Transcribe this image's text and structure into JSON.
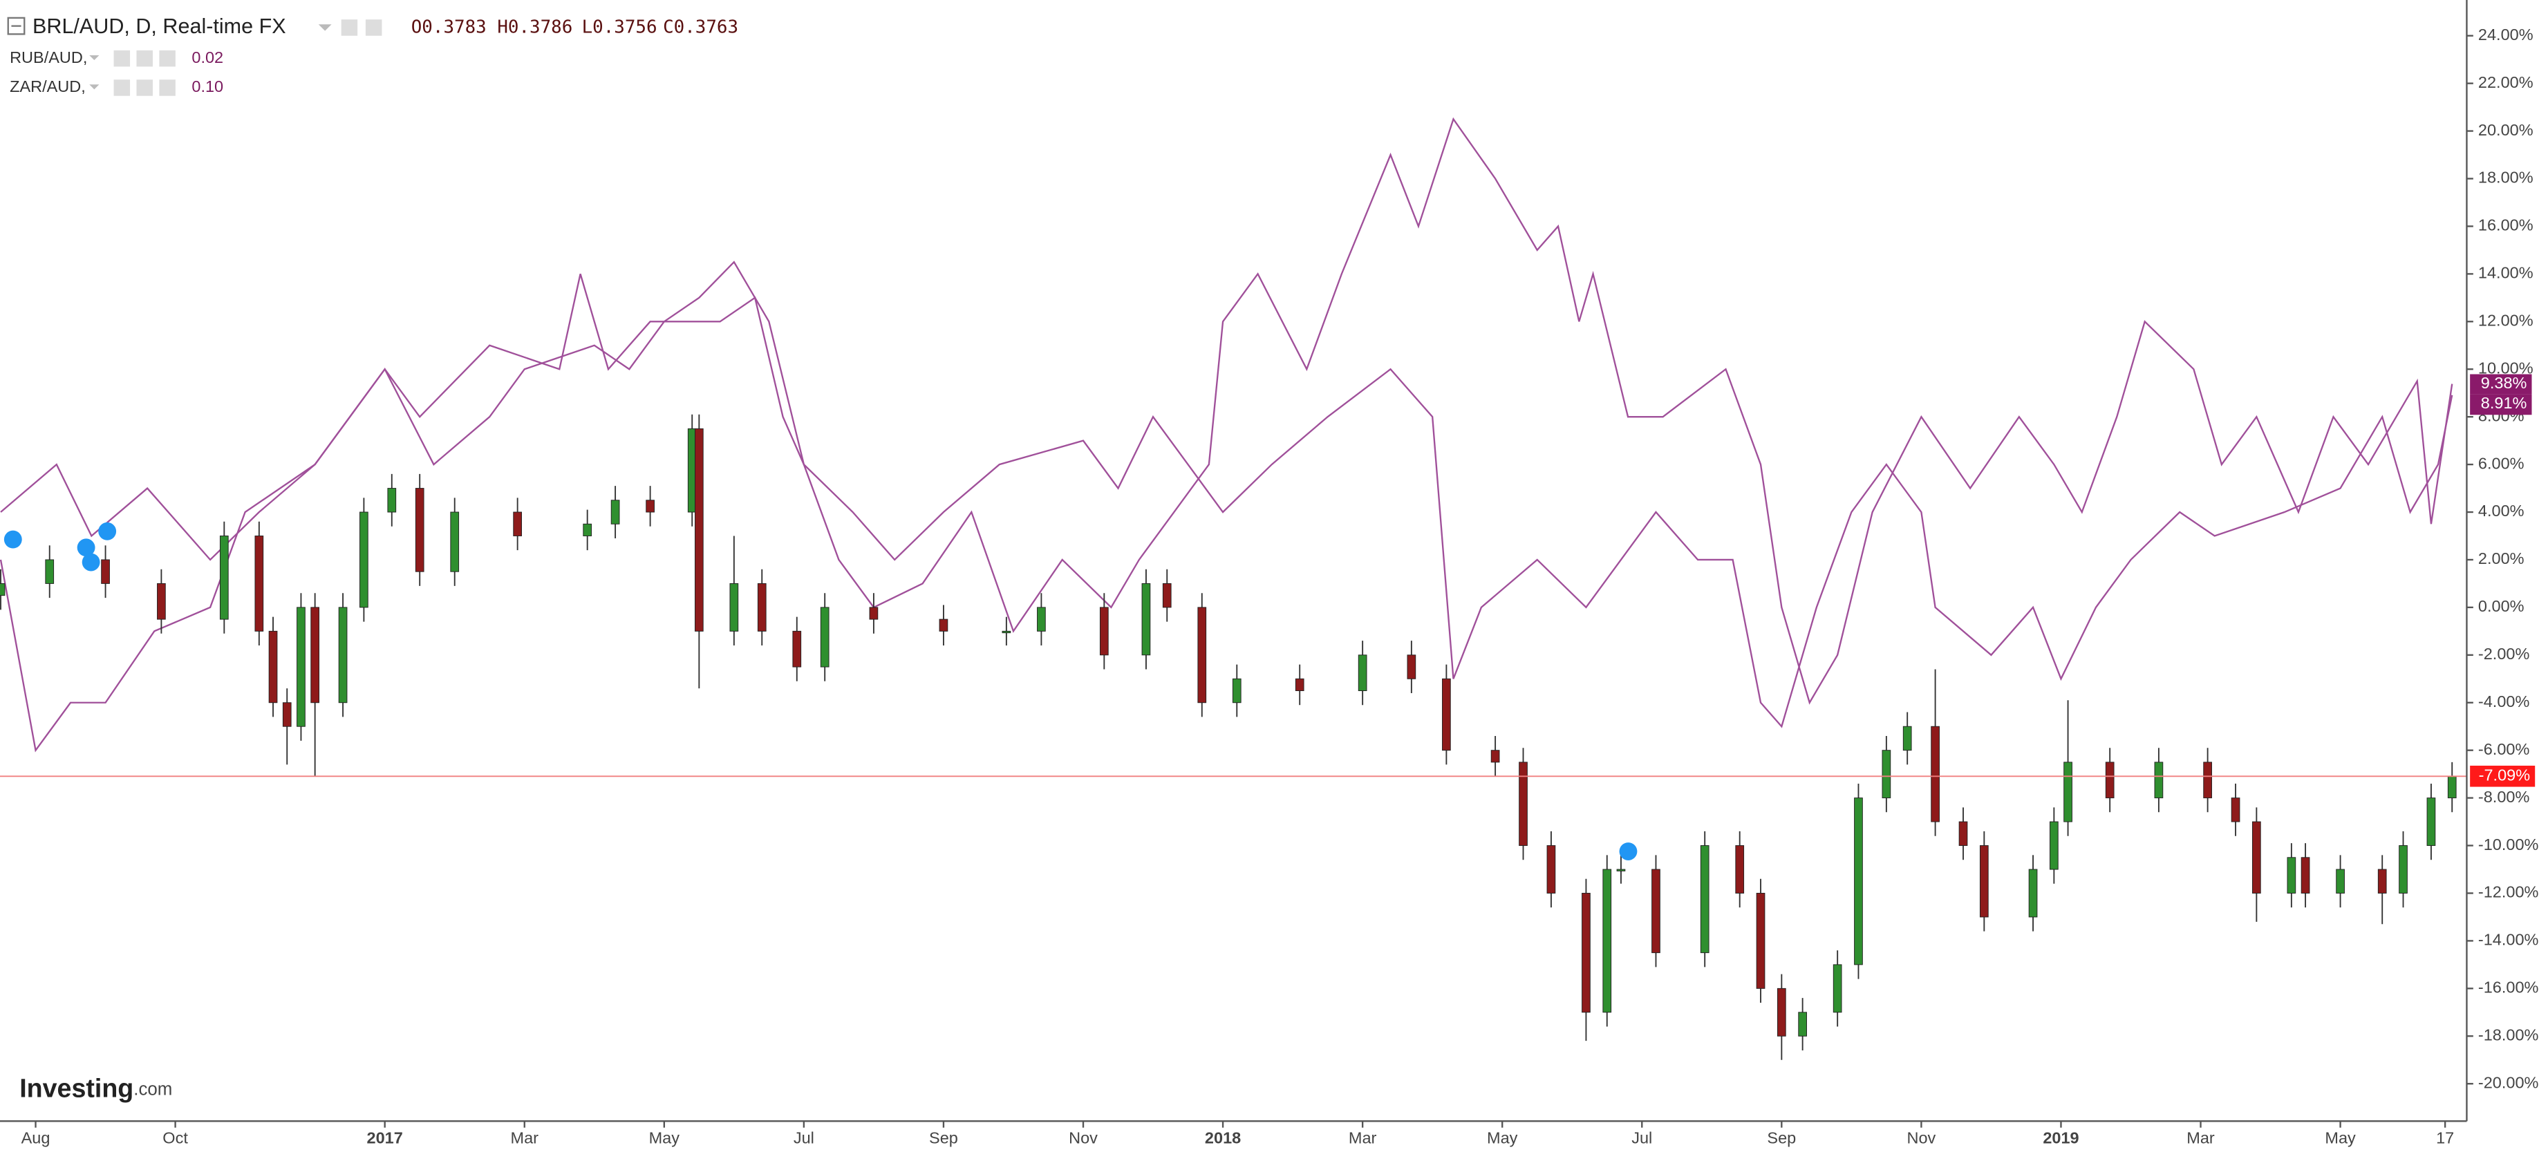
{
  "chart_data": {
    "type": "candlestick",
    "title": "BRL/AUD, D, Real-time FX",
    "ohlc": [
      "O0.3783",
      "H0.3786",
      "L0.3756",
      "C0.3763"
    ],
    "up_color": "#2f8f2f",
    "down_color": "#8e1b1b",
    "last_label": "-7.09%",
    "last_color": "#ff1a1a",
    "logo": [
      "Investing",
      ".com"
    ],
    "x": [
      6.5,
      7.2,
      8.0,
      8.8,
      9.7,
      10.2,
      10.4,
      10.6,
      10.8,
      11.0,
      11.4,
      11.7,
      12.1,
      12.5,
      13.0,
      13.9,
      14.9,
      15.3,
      15.8,
      16.4,
      16.5,
      17.0,
      17.4,
      17.9,
      18.3,
      19.0,
      20.0,
      20.9,
      21.4,
      22.3,
      22.9,
      23.2,
      23.7,
      24.2,
      25.1,
      26.0,
      26.7,
      27.2,
      27.9,
      28.3,
      28.7,
      29.2,
      29.5,
      29.7,
      30.2,
      30.9,
      31.4,
      31.7,
      32.0,
      32.3,
      32.8,
      33.1,
      33.5,
      33.8,
      34.2,
      34.6,
      34.9,
      35.6,
      35.9,
      36.1,
      36.7,
      37.4,
      38.1,
      38.5,
      38.8,
      39.3,
      39.5,
      40.0,
      40.6,
      40.9,
      41.3,
      41.6
    ],
    "open": [
      0.5,
      1,
      2,
      1,
      -0.5,
      3,
      -1,
      -4,
      -5,
      0,
      -4,
      0,
      4,
      5,
      1.5,
      4,
      3,
      3.5,
      4.5,
      4,
      7.5,
      -1,
      1,
      -1,
      -2.5,
      0,
      -0.5,
      -1,
      -1,
      0,
      -2,
      1,
      0,
      -4,
      -3,
      -3.5,
      -2,
      -3,
      -6,
      -6.5,
      -10,
      -12,
      -17,
      -11,
      -11,
      -14.5,
      -10,
      -12,
      -16,
      -18,
      -17,
      -15,
      -8,
      -6,
      -5,
      -9,
      -10,
      -13,
      -11,
      -9,
      -6.5,
      -8,
      -6.5,
      -8,
      -9,
      -12,
      -10.5,
      -12,
      -11,
      -12,
      -10,
      -8
    ],
    "high": [
      1.6,
      2.6,
      2.6,
      1.6,
      3.6,
      3.6,
      -0.4,
      -3.4,
      0.6,
      0.6,
      0.6,
      4.6,
      5.6,
      5.6,
      4.6,
      4.6,
      4.1,
      5.1,
      5.1,
      8.1,
      8.1,
      3,
      1.6,
      -0.4,
      0.6,
      0.6,
      0.1,
      -0.4,
      0.6,
      0.6,
      1.6,
      1.6,
      0.6,
      -2.4,
      -2.4,
      -1.4,
      -1.4,
      -2.4,
      -5.4,
      -5.9,
      -9.4,
      -11.4,
      -10.4,
      -10.4,
      -10.4,
      -9.4,
      -9.4,
      -11.4,
      -15.4,
      -16.4,
      -14.4,
      -7.4,
      -5.4,
      -4.4,
      -2.6,
      -8.4,
      -9.4,
      -10.4,
      -8.4,
      -3.9,
      -5.9,
      -5.9,
      -5.9,
      -7.4,
      -8.4,
      -9.9,
      -9.9,
      -10.4,
      -10.4,
      -9.4,
      -7.4,
      -6.5
    ],
    "low": [
      -0.1,
      0.4,
      0.4,
      -1.1,
      -1.1,
      -1.6,
      -4.6,
      -6.6,
      -5.6,
      -7.1,
      -4.6,
      -0.6,
      3.4,
      0.9,
      0.9,
      2.4,
      2.4,
      2.9,
      3.4,
      3.4,
      -3.4,
      -1.6,
      -1.6,
      -3.1,
      -3.1,
      -1.1,
      -1.6,
      -1.6,
      -1.6,
      -2.6,
      -2.6,
      -0.6,
      -4.6,
      -4.6,
      -4.1,
      -4.1,
      -3.6,
      -6.6,
      -7.1,
      -10.6,
      -12.6,
      -18.2,
      -17.6,
      -11.6,
      -15.1,
      -15.1,
      -12.6,
      -16.6,
      -19,
      -18.6,
      -17.6,
      -15.6,
      -8.6,
      -6.6,
      -9.6,
      -10.6,
      -13.6,
      -13.6,
      -11.6,
      -9.6,
      -8.6,
      -8.6,
      -8.6,
      -9.6,
      -13.2,
      -12.6,
      -12.6,
      -12.6,
      -13.3,
      -12.6,
      -10.6,
      -8.6
    ],
    "close": [
      1,
      2,
      1,
      -0.5,
      3,
      -1,
      -4,
      -5,
      0,
      -4,
      0,
      4,
      5,
      1.5,
      4,
      3,
      3.5,
      4.5,
      4,
      7.5,
      -1,
      1,
      -1,
      -2.5,
      0,
      -0.5,
      -1,
      -1,
      0,
      -2,
      1,
      0,
      -4,
      -3,
      -3.5,
      -2,
      -3,
      -6,
      -6.5,
      -10,
      -12,
      -17,
      -11,
      -11,
      -14.5,
      -10,
      -12,
      -16,
      -18,
      -17,
      -15,
      -8,
      -6,
      -5,
      -9,
      -10,
      -13,
      -11,
      -9,
      -6.5,
      -8,
      -6.5,
      -8,
      -9,
      -12,
      -10.5,
      -12,
      -11,
      -12,
      -10,
      -8,
      -7.09
    ],
    "series": [
      {
        "name": "RUB/AUD,",
        "legend_value": "0.02",
        "type": "line",
        "color": "#a0509a",
        "tag_color": "#8a1a6a",
        "last_label": "8.91%",
        "x": [
          6.5,
          7,
          7.5,
          8,
          8.7,
          9.5,
          10,
          11,
          11.5,
          12,
          12.7,
          13.5,
          14,
          15,
          15.5,
          16,
          16.5,
          17,
          17.5,
          18,
          18.7,
          19.3,
          20,
          20.8,
          22,
          22.5,
          23,
          23.5,
          24,
          24.7,
          25.5,
          26.4,
          27,
          27.3,
          27.7,
          28.5,
          29.2,
          30.2,
          30.8,
          31.3,
          31.7,
          32,
          32.5,
          33,
          33.5,
          34,
          34.2,
          35,
          35.6,
          36,
          36.5,
          37,
          37.7,
          38.2,
          39.2,
          40,
          40.6,
          41,
          41.4,
          41.6
        ],
        "values": [
          2,
          -6,
          -4,
          -4,
          -1,
          0,
          4,
          6,
          8,
          10,
          6,
          8,
          10,
          11,
          10,
          12,
          13,
          14.5,
          12,
          6,
          4,
          2,
          4,
          6,
          7,
          5,
          8,
          6,
          4,
          6,
          8,
          10,
          8,
          -3,
          0,
          2,
          0,
          4,
          2,
          2,
          -4,
          -5,
          0,
          4,
          6,
          4,
          0,
          -2,
          0,
          -3,
          0,
          2,
          4,
          3,
          4,
          5,
          8,
          4,
          6,
          8.91
        ]
      },
      {
        "name": "ZAR/AUD,",
        "legend_value": "0.10",
        "type": "line",
        "color": "#a0509a",
        "tag_color": "#8a1a6a",
        "last_label": "9.38%",
        "x": [
          6.5,
          7.3,
          7.8,
          8.6,
          9.5,
          10.2,
          11,
          12,
          12.5,
          13.5,
          14.5,
          14.8,
          15.2,
          15.8,
          16.8,
          17.3,
          17.7,
          18,
          18.5,
          19,
          19.7,
          20.4,
          21,
          21.7,
          22.4,
          22.8,
          23.3,
          23.8,
          24,
          24.5,
          25.2,
          25.7,
          26.4,
          26.8,
          27.3,
          27.9,
          28.5,
          28.8,
          29.1,
          29.3,
          29.8,
          30.3,
          31.2,
          31.7,
          32,
          32.4,
          32.8,
          33.3,
          34,
          34.7,
          35.4,
          35.9,
          36.3,
          36.8,
          37.2,
          37.9,
          38.3,
          38.8,
          39.4,
          39.9,
          40.4,
          41.1,
          41.3,
          41.6
        ],
        "values": [
          4,
          6,
          3,
          5,
          2,
          4,
          6,
          10,
          8,
          11,
          10,
          14,
          10,
          12,
          12,
          13,
          8,
          6,
          2,
          0,
          1,
          4,
          -1,
          2,
          0,
          2,
          4,
          6,
          12,
          14,
          10,
          14,
          19,
          16,
          20.5,
          18,
          15,
          16,
          12,
          14,
          8,
          8,
          10,
          6,
          0,
          -4,
          -2,
          4,
          8,
          5,
          8,
          6,
          4,
          8,
          12,
          10,
          6,
          8,
          4,
          8,
          6,
          9.5,
          3.5,
          9.38
        ]
      }
    ],
    "xlim": [
      6.49,
      41.81
    ],
    "xticks": [
      {
        "value": 7,
        "label": "Aug"
      },
      {
        "value": 9,
        "label": "Oct"
      },
      {
        "value": 12,
        "label": "2017"
      },
      {
        "value": 14,
        "label": "Mar"
      },
      {
        "value": 16,
        "label": "May"
      },
      {
        "value": 18,
        "label": "Jul"
      },
      {
        "value": 20,
        "label": "Sep"
      },
      {
        "value": 22,
        "label": "Nov"
      },
      {
        "value": 24,
        "label": "2018"
      },
      {
        "value": 26,
        "label": "Mar"
      },
      {
        "value": 28,
        "label": "May"
      },
      {
        "value": 30,
        "label": "Jul"
      },
      {
        "value": 32,
        "label": "Sep"
      },
      {
        "value": 34,
        "label": "Nov"
      },
      {
        "value": 36,
        "label": "2019"
      },
      {
        "value": 38,
        "label": "Mar"
      },
      {
        "value": 40,
        "label": "May"
      },
      {
        "value": 41.5,
        "label": "17"
      }
    ],
    "ylim": [
      -21.57,
      25.5
    ],
    "yticks": [
      {
        "value": 24,
        "label": "24.00%"
      },
      {
        "value": 22,
        "label": "22.00%"
      },
      {
        "value": 20,
        "label": "20.00%"
      },
      {
        "value": 18,
        "label": "18.00%"
      },
      {
        "value": 16,
        "label": "16.00%"
      },
      {
        "value": 14,
        "label": "14.00%"
      },
      {
        "value": 12,
        "label": "12.00%"
      },
      {
        "value": 10,
        "label": "10.00%"
      },
      {
        "value": 8,
        "label": "8.00%"
      },
      {
        "value": 6,
        "label": "6.00%"
      },
      {
        "value": 4,
        "label": "4.00%"
      },
      {
        "value": 2,
        "label": "2.00%"
      },
      {
        "value": 0,
        "label": "0.00%"
      },
      {
        "value": -2,
        "label": "-2.00%"
      },
      {
        "value": -4,
        "label": "-4.00%"
      },
      {
        "value": -6,
        "label": "-6.00%"
      },
      {
        "value": -8,
        "label": "-8.00%"
      },
      {
        "value": -10,
        "label": "-10.00%"
      },
      {
        "value": -12,
        "label": "-12.00%"
      },
      {
        "value": -14,
        "label": "-14.00%"
      },
      {
        "value": -16,
        "label": "-16.00%"
      },
      {
        "value": -18,
        "label": "-18.00%"
      },
      {
        "value": -20,
        "label": "-20.00%"
      }
    ]
  }
}
